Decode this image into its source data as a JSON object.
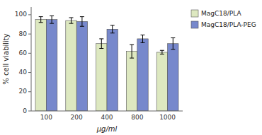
{
  "chart_data": {
    "type": "bar",
    "categories": [
      "100",
      "200",
      "400",
      "800",
      "1000"
    ],
    "series": [
      {
        "name": "MagC18/PLA",
        "color": "#dde8c0",
        "values": [
          95,
          94,
          70,
          62,
          61
        ],
        "errors": [
          3,
          3,
          5,
          7,
          2
        ]
      },
      {
        "name": "MagC18/PLA-PEG",
        "color": "#7788cc",
        "values": [
          95,
          93,
          85,
          75,
          70
        ],
        "errors": [
          4,
          5,
          4,
          4,
          6
        ]
      }
    ],
    "xlabel": "μg/ml",
    "ylabel": "% cell viability",
    "ylim": [
      0,
      108
    ],
    "yticks": [
      0,
      20,
      40,
      60,
      80,
      100
    ],
    "grid": false,
    "legend": "right"
  }
}
